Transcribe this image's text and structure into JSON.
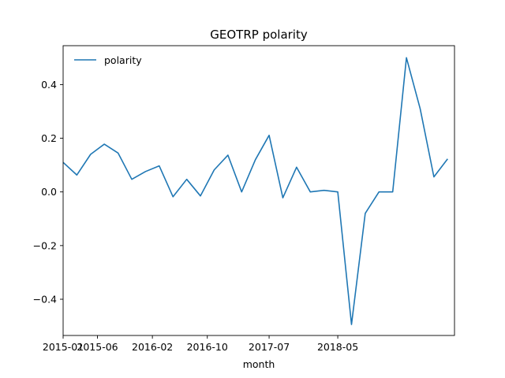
{
  "chart_data": {
    "type": "line",
    "title": "GEOTRP polarity",
    "xlabel": "month",
    "ylabel": "",
    "x": [
      "2015-01",
      "2015-02",
      "2015-03",
      "2015-04",
      "2015-05",
      "2015-06",
      "2015-07",
      "2015-08",
      "2015-09",
      "2015-10",
      "2015-11",
      "2015-12",
      "2016-01",
      "2016-02",
      "2016-03",
      "2016-04",
      "2016-05",
      "2016-06",
      "2016-07",
      "2016-08",
      "2016-09",
      "2016-10",
      "2016-11",
      "2016-12",
      "2017-01",
      "2017-02",
      "2017-03",
      "2017-04",
      "2017-05",
      "2017-06",
      "2017-07",
      "2017-08",
      "2017-09",
      "2017-10",
      "2017-11",
      "2017-12",
      "2018-01",
      "2018-02",
      "2018-03",
      "2018-04",
      "2018-05",
      "2018-06",
      "2018-07",
      "2018-08",
      "2018-09",
      "2018-10",
      "2018-11",
      "2018-12",
      "2019-01",
      "2019-02",
      "2019-03",
      "2019-04",
      "2019-05",
      "2019-06",
      "2019-07",
      "2019-08",
      "2019-09",
      "2019-10"
    ],
    "series": [
      {
        "name": "polarity",
        "color": "#1f77b4",
        "points": [
          [
            "2015-01",
            0.11
          ],
          [
            "2015-03",
            0.063
          ],
          [
            "2015-05",
            0.14
          ],
          [
            "2015-07",
            0.178
          ],
          [
            "2015-09",
            0.145
          ],
          [
            "2015-11",
            0.047
          ],
          [
            "2016-01",
            0.076
          ],
          [
            "2016-03",
            0.097
          ],
          [
            "2016-05",
            -0.018
          ],
          [
            "2016-07",
            0.047
          ],
          [
            "2016-09",
            -0.015
          ],
          [
            "2016-11",
            0.082
          ],
          [
            "2017-01",
            0.137
          ],
          [
            "2017-03",
            0.0
          ],
          [
            "2017-05",
            0.12
          ],
          [
            "2017-07",
            0.211
          ],
          [
            "2017-09",
            -0.022
          ],
          [
            "2017-11",
            0.092
          ],
          [
            "2018-01",
            0.0
          ],
          [
            "2018-03",
            0.006
          ],
          [
            "2018-05",
            0.0
          ],
          [
            "2018-07",
            -0.494
          ],
          [
            "2018-09",
            -0.08
          ],
          [
            "2018-11",
            0.0
          ],
          [
            "2019-01",
            0.0
          ],
          [
            "2019-03",
            0.5
          ],
          [
            "2019-05",
            0.31
          ],
          [
            "2019-07",
            0.056
          ],
          [
            "2019-09",
            0.123
          ]
        ]
      }
    ],
    "xticks": [
      "2015-01",
      "2015-06",
      "2016-02",
      "2016-10",
      "2017-07",
      "2018-05"
    ],
    "yticks": [
      -0.4,
      -0.2,
      0.0,
      0.2,
      0.4
    ],
    "ytick_labels": [
      "−0.4",
      "−0.2",
      "0.0",
      "0.2",
      "0.4"
    ],
    "xlim": [
      "2015-01",
      "2019-10"
    ],
    "ylim": [
      -0.535,
      0.545
    ],
    "grid": false,
    "legend": {
      "position": "upper left",
      "entries": [
        "polarity"
      ]
    }
  }
}
